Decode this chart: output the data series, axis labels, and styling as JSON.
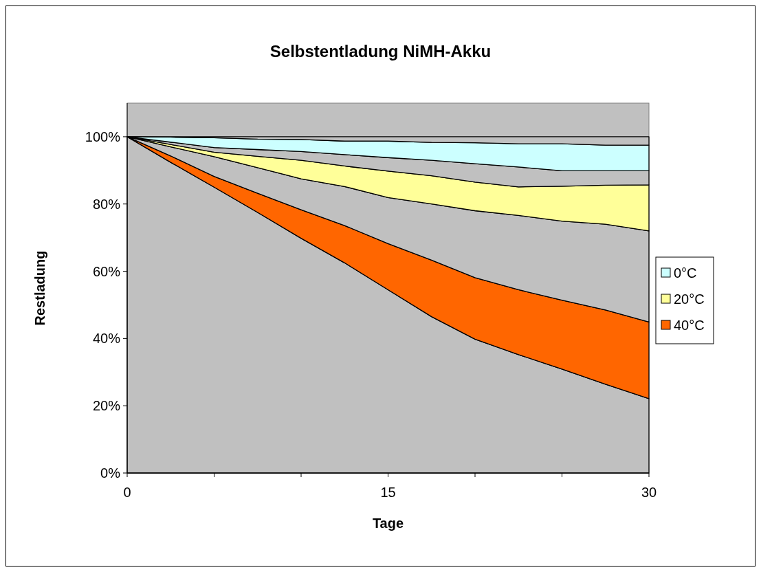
{
  "chart_data": {
    "type": "area",
    "stacked": true,
    "title": "Selbstentladung NiMH-Akku",
    "xlabel": "Tage",
    "ylabel": "Restladung",
    "x": [
      0,
      2.5,
      5,
      7.5,
      10,
      12.5,
      15,
      17.5,
      20,
      22.5,
      25,
      27.5,
      30
    ],
    "xlim": [
      0,
      30
    ],
    "xticks": [
      0,
      {
        "value": 5,
        "label": null
      },
      {
        "value": 10,
        "label": null
      },
      15,
      {
        "value": 20,
        "label": null
      },
      {
        "value": 25,
        "label": null
      },
      30
    ],
    "ylim": [
      0,
      110
    ],
    "yticks": [
      {
        "value": 0,
        "label": "0%"
      },
      {
        "value": 20,
        "label": "20%"
      },
      {
        "value": 40,
        "label": "40%"
      },
      {
        "value": 60,
        "label": "60%"
      },
      {
        "value": 80,
        "label": "80%"
      },
      {
        "value": 100,
        "label": "100%"
      }
    ],
    "legend": "right",
    "grid": false,
    "series": [
      {
        "color": "#c0c0c0",
        "values": [
          100,
          92.4,
          85,
          77.5,
          69.8,
          62.5,
          54.5,
          46.5,
          39.8,
          35.2,
          30.9,
          26.4,
          22.1
        ]
      },
      {
        "name": "40°C",
        "color": "#ff6600",
        "values": [
          0,
          1.9,
          3.2,
          5.7,
          8.5,
          11.1,
          13.7,
          16.8,
          18.3,
          19.3,
          20.5,
          22.1,
          22.8
        ]
      },
      {
        "color": "#c0c0c0",
        "values": [
          0,
          2.7,
          5.9,
          7.6,
          9.2,
          11.6,
          13.7,
          16.7,
          19.9,
          22.1,
          23.5,
          25.5,
          27.1
        ]
      },
      {
        "name": "20°C",
        "color": "#ffff99",
        "values": [
          0,
          0.7,
          1.3,
          3.4,
          5.5,
          6.1,
          7.9,
          8.4,
          8.5,
          8.5,
          10.4,
          11.6,
          13.7
        ]
      },
      {
        "color": "#c0c0c0",
        "values": [
          0,
          0.7,
          1.4,
          2.0,
          2.6,
          3.4,
          4.0,
          4.6,
          5.5,
          5.9,
          4.6,
          4.3,
          4.2
        ]
      },
      {
        "name": "0°C",
        "color": "#ccffff",
        "values": [
          0,
          1.5,
          2.9,
          3.1,
          3.6,
          4.0,
          4.9,
          5.3,
          6.2,
          6.9,
          8.0,
          7.6,
          7.6
        ]
      },
      {
        "color": "#c0c0c0",
        "values": [
          0,
          0.1,
          0.3,
          0.7,
          0.8,
          1.3,
          1.3,
          1.7,
          1.8,
          2.1,
          2.1,
          2.5,
          2.5
        ]
      }
    ]
  }
}
